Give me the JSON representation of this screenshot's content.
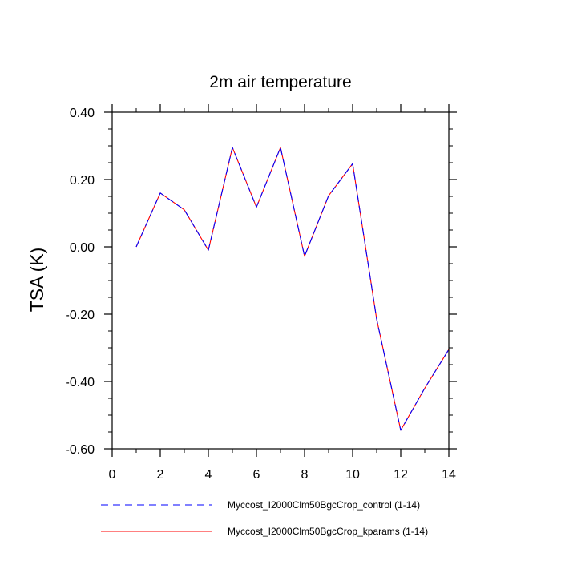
{
  "chart_data": {
    "type": "line",
    "title": "2m air temperature",
    "xlabel": "",
    "ylabel": "TSA  (K)",
    "xlim": [
      0,
      14
    ],
    "ylim": [
      -0.6,
      0.4
    ],
    "x_ticks": [
      0,
      2,
      4,
      6,
      8,
      10,
      12,
      14
    ],
    "y_ticks": [
      0.4,
      0.2,
      0.0,
      -0.2,
      -0.4,
      -0.6
    ],
    "x_tick_labels": [
      "0",
      "2",
      "4",
      "6",
      "8",
      "10",
      "12",
      "14"
    ],
    "y_tick_labels": [
      "0.40",
      "0.20",
      "0.00",
      "-0.20",
      "-0.40",
      "-0.60"
    ],
    "grid": false,
    "legend_position": "bottom",
    "x": [
      1,
      2,
      3,
      4,
      5,
      6,
      7,
      8,
      9,
      10,
      11,
      12,
      13,
      14
    ],
    "series": [
      {
        "name": "Myccost_I2000Clm50BgcCrop_control (1-14)",
        "color": "#0000ff",
        "style": "dashed",
        "values": [
          0.0,
          0.16,
          0.11,
          -0.01,
          0.295,
          0.118,
          0.295,
          -0.028,
          0.152,
          0.247,
          -0.215,
          -0.545,
          -0.42,
          -0.305
        ]
      },
      {
        "name": "Myccost_I2000Clm50BgcCrop_kparams (1-14)",
        "color": "#ff0000",
        "style": "solid",
        "values": [
          0.0,
          0.16,
          0.11,
          -0.01,
          0.295,
          0.118,
          0.295,
          -0.028,
          0.152,
          0.247,
          -0.215,
          -0.545,
          -0.42,
          -0.305
        ]
      }
    ]
  }
}
